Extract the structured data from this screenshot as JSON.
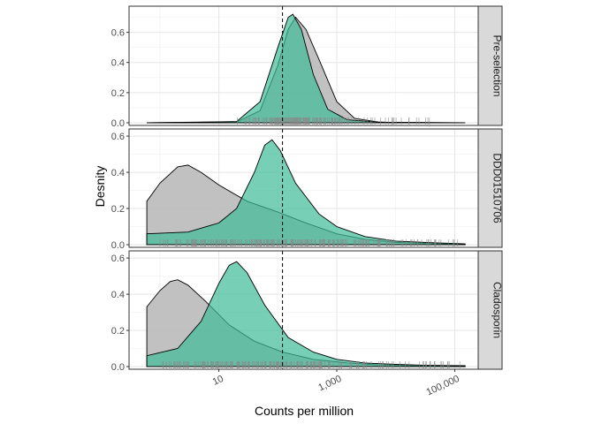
{
  "chart_data": {
    "type": "area",
    "chart_kind": "faceted density plot with rug",
    "xlabel": "Counts per million",
    "ylabel": "Desnity",
    "x_scale": "log10",
    "x_ticks": [
      10,
      1000,
      100000
    ],
    "x_tick_labels": [
      "10",
      "1,000",
      "100,000"
    ],
    "xlim": [
      0.3,
      250000
    ],
    "grid": true,
    "legend": "none",
    "reference_line": {
      "x": 120,
      "style": "dashed"
    },
    "colors": {
      "reference": "#bebebe",
      "selected": "#3dbb95",
      "panel_strip": "#d9d9d9"
    },
    "facets": [
      {
        "label": "Pre-selection",
        "ylim": [
          0,
          0.75
        ],
        "y_ticks": [
          0.0,
          0.2,
          0.4,
          0.6
        ],
        "series": [
          {
            "fill": "#bebebe",
            "points": [
              [
                0.6,
                0
              ],
              [
                20,
                0.005
              ],
              [
                50,
                0.08
              ],
              [
                100,
                0.38
              ],
              [
                150,
                0.62
              ],
              [
                200,
                0.7
              ],
              [
                300,
                0.62
              ],
              [
                500,
                0.42
              ],
              [
                1000,
                0.14
              ],
              [
                2000,
                0.03
              ],
              [
                5000,
                0.005
              ],
              [
                10000,
                0.002
              ],
              [
                150000,
                0
              ]
            ]
          },
          {
            "fill": "#3dbb95",
            "points": [
              [
                0.6,
                0
              ],
              [
                20,
                0.008
              ],
              [
                50,
                0.14
              ],
              [
                100,
                0.5
              ],
              [
                150,
                0.7
              ],
              [
                180,
                0.72
              ],
              [
                250,
                0.62
              ],
              [
                400,
                0.32
              ],
              [
                700,
                0.09
              ],
              [
                1500,
                0.02
              ],
              [
                5000,
                0.004
              ],
              [
                150000,
                0
              ]
            ]
          }
        ]
      },
      {
        "label": "DDD01510706",
        "ylim": [
          0,
          0.62
        ],
        "y_ticks": [
          0.0,
          0.2,
          0.4,
          0.6
        ],
        "series": [
          {
            "fill": "#bebebe",
            "points": [
              [
                0.6,
                0.24
              ],
              [
                1,
                0.34
              ],
              [
                2,
                0.43
              ],
              [
                3,
                0.44
              ],
              [
                5,
                0.4
              ],
              [
                10,
                0.33
              ],
              [
                30,
                0.24
              ],
              [
                100,
                0.18
              ],
              [
                300,
                0.12
              ],
              [
                1000,
                0.06
              ],
              [
                3000,
                0.03
              ],
              [
                10000,
                0.013
              ],
              [
                50000,
                0.005
              ],
              [
                150000,
                0.003
              ]
            ]
          },
          {
            "fill": "#3dbb95",
            "points": [
              [
                0.6,
                0.06
              ],
              [
                3,
                0.07
              ],
              [
                10,
                0.12
              ],
              [
                20,
                0.2
              ],
              [
                40,
                0.4
              ],
              [
                60,
                0.55
              ],
              [
                80,
                0.58
              ],
              [
                110,
                0.52
              ],
              [
                200,
                0.34
              ],
              [
                500,
                0.17
              ],
              [
                1000,
                0.1
              ],
              [
                3000,
                0.045
              ],
              [
                10000,
                0.02
              ],
              [
                50000,
                0.01
              ],
              [
                150000,
                0.005
              ]
            ]
          }
        ]
      },
      {
        "label": "Cladosporin",
        "ylim": [
          0,
          0.62
        ],
        "y_ticks": [
          0.0,
          0.2,
          0.4,
          0.6
        ],
        "series": [
          {
            "fill": "#bebebe",
            "points": [
              [
                0.6,
                0.33
              ],
              [
                1,
                0.42
              ],
              [
                1.5,
                0.47
              ],
              [
                2,
                0.48
              ],
              [
                3,
                0.45
              ],
              [
                6,
                0.36
              ],
              [
                15,
                0.23
              ],
              [
                40,
                0.14
              ],
              [
                120,
                0.08
              ],
              [
                400,
                0.04
              ],
              [
                1500,
                0.02
              ],
              [
                5000,
                0.01
              ],
              [
                20000,
                0.004
              ],
              [
                150000,
                0.002
              ]
            ]
          },
          {
            "fill": "#3dbb95",
            "points": [
              [
                0.6,
                0.06
              ],
              [
                2,
                0.1
              ],
              [
                5,
                0.25
              ],
              [
                10,
                0.46
              ],
              [
                15,
                0.56
              ],
              [
                20,
                0.58
              ],
              [
                30,
                0.52
              ],
              [
                60,
                0.34
              ],
              [
                150,
                0.16
              ],
              [
                400,
                0.08
              ],
              [
                1000,
                0.04
              ],
              [
                3000,
                0.02
              ],
              [
                10000,
                0.012
              ],
              [
                30000,
                0.008
              ],
              [
                150000,
                0.005
              ]
            ]
          }
        ]
      }
    ]
  }
}
